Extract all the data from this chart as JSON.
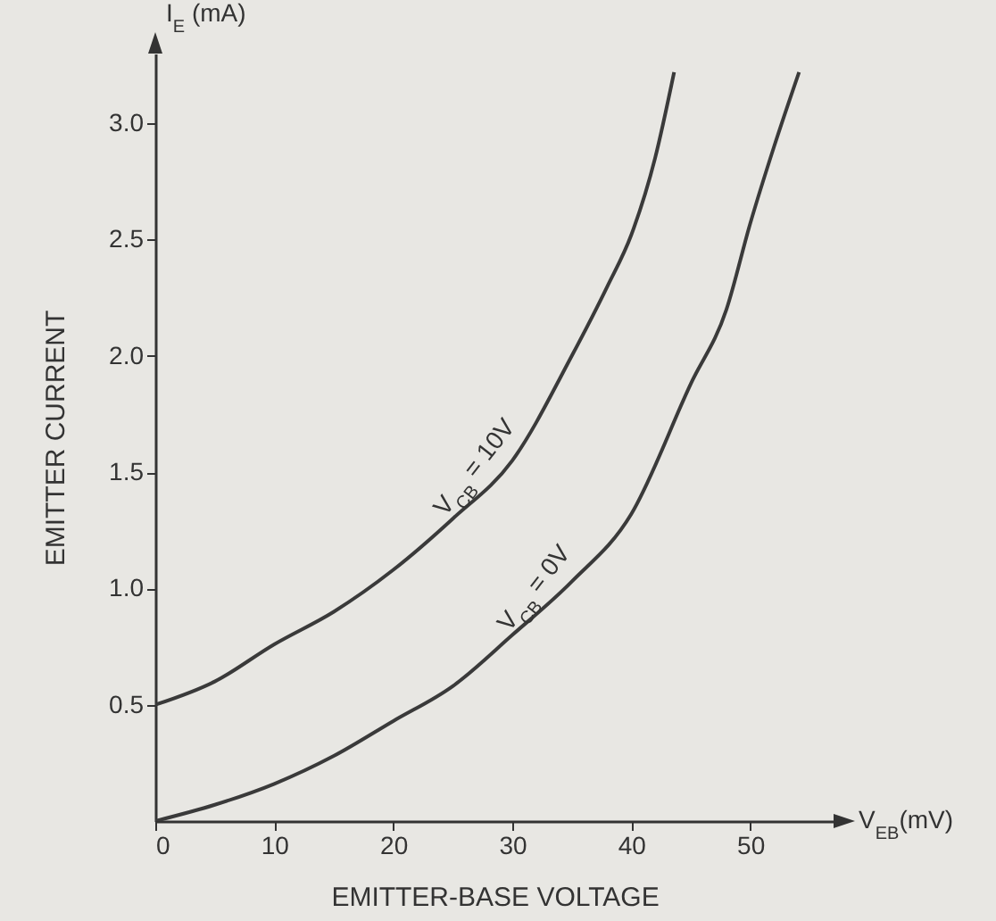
{
  "chart_data": {
    "type": "line",
    "xlabel": "EMITTER-BASE VOLTAGE",
    "ylabel": "EMITTER CURRENT",
    "annotations": [
      "I$_{E}$ (mA)",
      "V$_{EB}$(mV)"
    ],
    "x": [
      0,
      5,
      10,
      15,
      20,
      25,
      30,
      35,
      38,
      40,
      42,
      43.6
    ],
    "series": [
      {
        "name": "V$_{CB}$ = 10V",
        "color": "#3a3a3a",
        "values": [
          0.5,
          0.6,
          0.76,
          0.9,
          1.08,
          1.3,
          1.55,
          2.0,
          2.3,
          2.52,
          2.85,
          3.22
        ]
      },
      {
        "name": "V$_{CB}$ = 0V",
        "color": "#3a3a3a",
        "x": [
          0,
          5,
          10,
          15,
          20,
          25,
          30,
          35,
          40,
          45,
          48,
          50,
          52,
          54.1
        ],
        "values": [
          0,
          0.07,
          0.16,
          0.28,
          0.43,
          0.58,
          0.8,
          1.03,
          1.32,
          1.88,
          2.2,
          2.57,
          2.9,
          3.22
        ]
      }
    ],
    "xlim": [
      0,
      57
    ],
    "ylim": [
      0,
      3.3
    ],
    "xticks": [
      0,
      10,
      20,
      30,
      40,
      50
    ],
    "yticks": [
      0.5,
      {
        "value": 1,
        "label": "1.0"
      },
      1.5,
      {
        "value": 2,
        "label": "2.0"
      },
      2.5,
      {
        "value": 3,
        "label": "3.0"
      }
    ],
    "grid": false,
    "marker": "none",
    "line_style": "solid"
  }
}
